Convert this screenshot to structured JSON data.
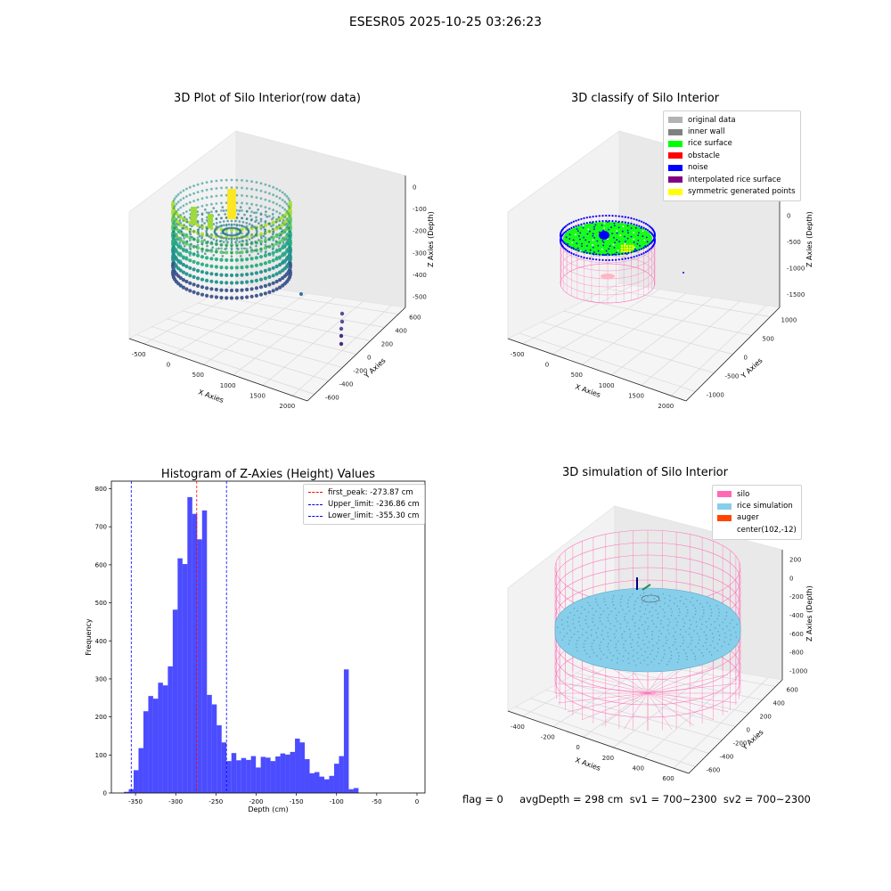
{
  "suptitle": "ESESR05 2025-10-25 03:26:23",
  "plots": {
    "raw": {
      "title": "3D Plot of Silo Interior(row data)",
      "xlabel": "X Axies",
      "ylabel": "Y Axies",
      "zlabel": "Z Axies (Depth)",
      "xticks": [
        "-500",
        "0",
        "500",
        "1000",
        "1500",
        "2000"
      ],
      "yticks": [
        "-600",
        "-400",
        "-200",
        "0",
        "200",
        "400",
        "600"
      ],
      "zticks": [
        "0",
        "-100",
        "-200",
        "-300",
        "-400",
        "-500"
      ]
    },
    "classify": {
      "title": "3D classify of Silo Interior",
      "xlabel": "X Axies",
      "ylabel": "Y Axies",
      "zlabel": "Z Axies (Depth)",
      "xticks": [
        "-500",
        "0",
        "500",
        "1000",
        "1500",
        "2000"
      ],
      "yticks": [
        "-1000",
        "-500",
        "0",
        "500",
        "1000"
      ],
      "zticks": [
        "500",
        "0",
        "-500",
        "-1000",
        "-1500"
      ],
      "legend": [
        {
          "label": "original data",
          "color": "#b3b3b3"
        },
        {
          "label": "inner wall",
          "color": "#808080"
        },
        {
          "label": "rice surface",
          "color": "#00ff00"
        },
        {
          "label": "obstacle",
          "color": "#ff0000"
        },
        {
          "label": "noise",
          "color": "#0000ff"
        },
        {
          "label": "interpolated rice surface",
          "color": "#800080"
        },
        {
          "label": "symmetric generated points",
          "color": "#ffff00"
        }
      ]
    },
    "simulation": {
      "title": "3D simulation of Silo Interior",
      "xlabel": "X Axies",
      "ylabel": "Y Axies",
      "zlabel": "Z Axies (Depth)",
      "xticks": [
        "-400",
        "-200",
        "0",
        "200",
        "400",
        "600"
      ],
      "yticks": [
        "-600",
        "-400",
        "-200",
        "0",
        "200",
        "400",
        "600"
      ],
      "zticks": [
        "200",
        "0",
        "-200",
        "-400",
        "-600",
        "-800",
        "-1000"
      ],
      "legend": [
        {
          "label": "silo",
          "color": "#ff69b4"
        },
        {
          "label": "rice simulation",
          "color": "#87ceeb"
        },
        {
          "label": "auger",
          "color": "#ff4500"
        },
        {
          "label": "center(102,-12)",
          "color": ""
        }
      ]
    }
  },
  "chart_data": {
    "type": "bar",
    "title": "Histogram of Z-Axies (Height) Values",
    "xlabel": "Depth (cm)",
    "ylabel": "Frequency",
    "xlim": [
      -380,
      10
    ],
    "ylim": [
      0,
      820
    ],
    "xticks": [
      -350,
      -300,
      -250,
      -200,
      -150,
      -100,
      -50,
      0
    ],
    "yticks": [
      0,
      100,
      200,
      300,
      400,
      500,
      600,
      700,
      800
    ],
    "bin_start": -364.5,
    "bin_width": 6.08,
    "color": "#0000ff",
    "values": [
      3,
      10,
      60,
      118,
      215,
      255,
      248,
      290,
      283,
      333,
      482,
      617,
      602,
      778,
      734,
      667,
      743,
      258,
      233,
      178,
      133,
      84,
      105,
      86,
      92,
      87,
      97,
      67,
      95,
      93,
      84,
      96,
      104,
      101,
      108,
      143,
      133,
      89,
      52,
      55,
      43,
      36,
      45,
      77,
      97,
      325,
      10,
      13
    ],
    "lines": [
      {
        "name": "first_peak: -273.87 cm",
        "x": -273.87,
        "color": "#ff0000"
      },
      {
        "name": "Upper_limit: -236.86 cm",
        "x": -236.86,
        "color": "#0000ff"
      },
      {
        "name": "Lower_limit: -355.30 cm",
        "x": -355.3,
        "color": "#0000ff"
      }
    ]
  },
  "footer": {
    "text": "flag = 0     avgDepth = 298 cm  sv1 = 700~2300  sv2 = 700~2300"
  }
}
